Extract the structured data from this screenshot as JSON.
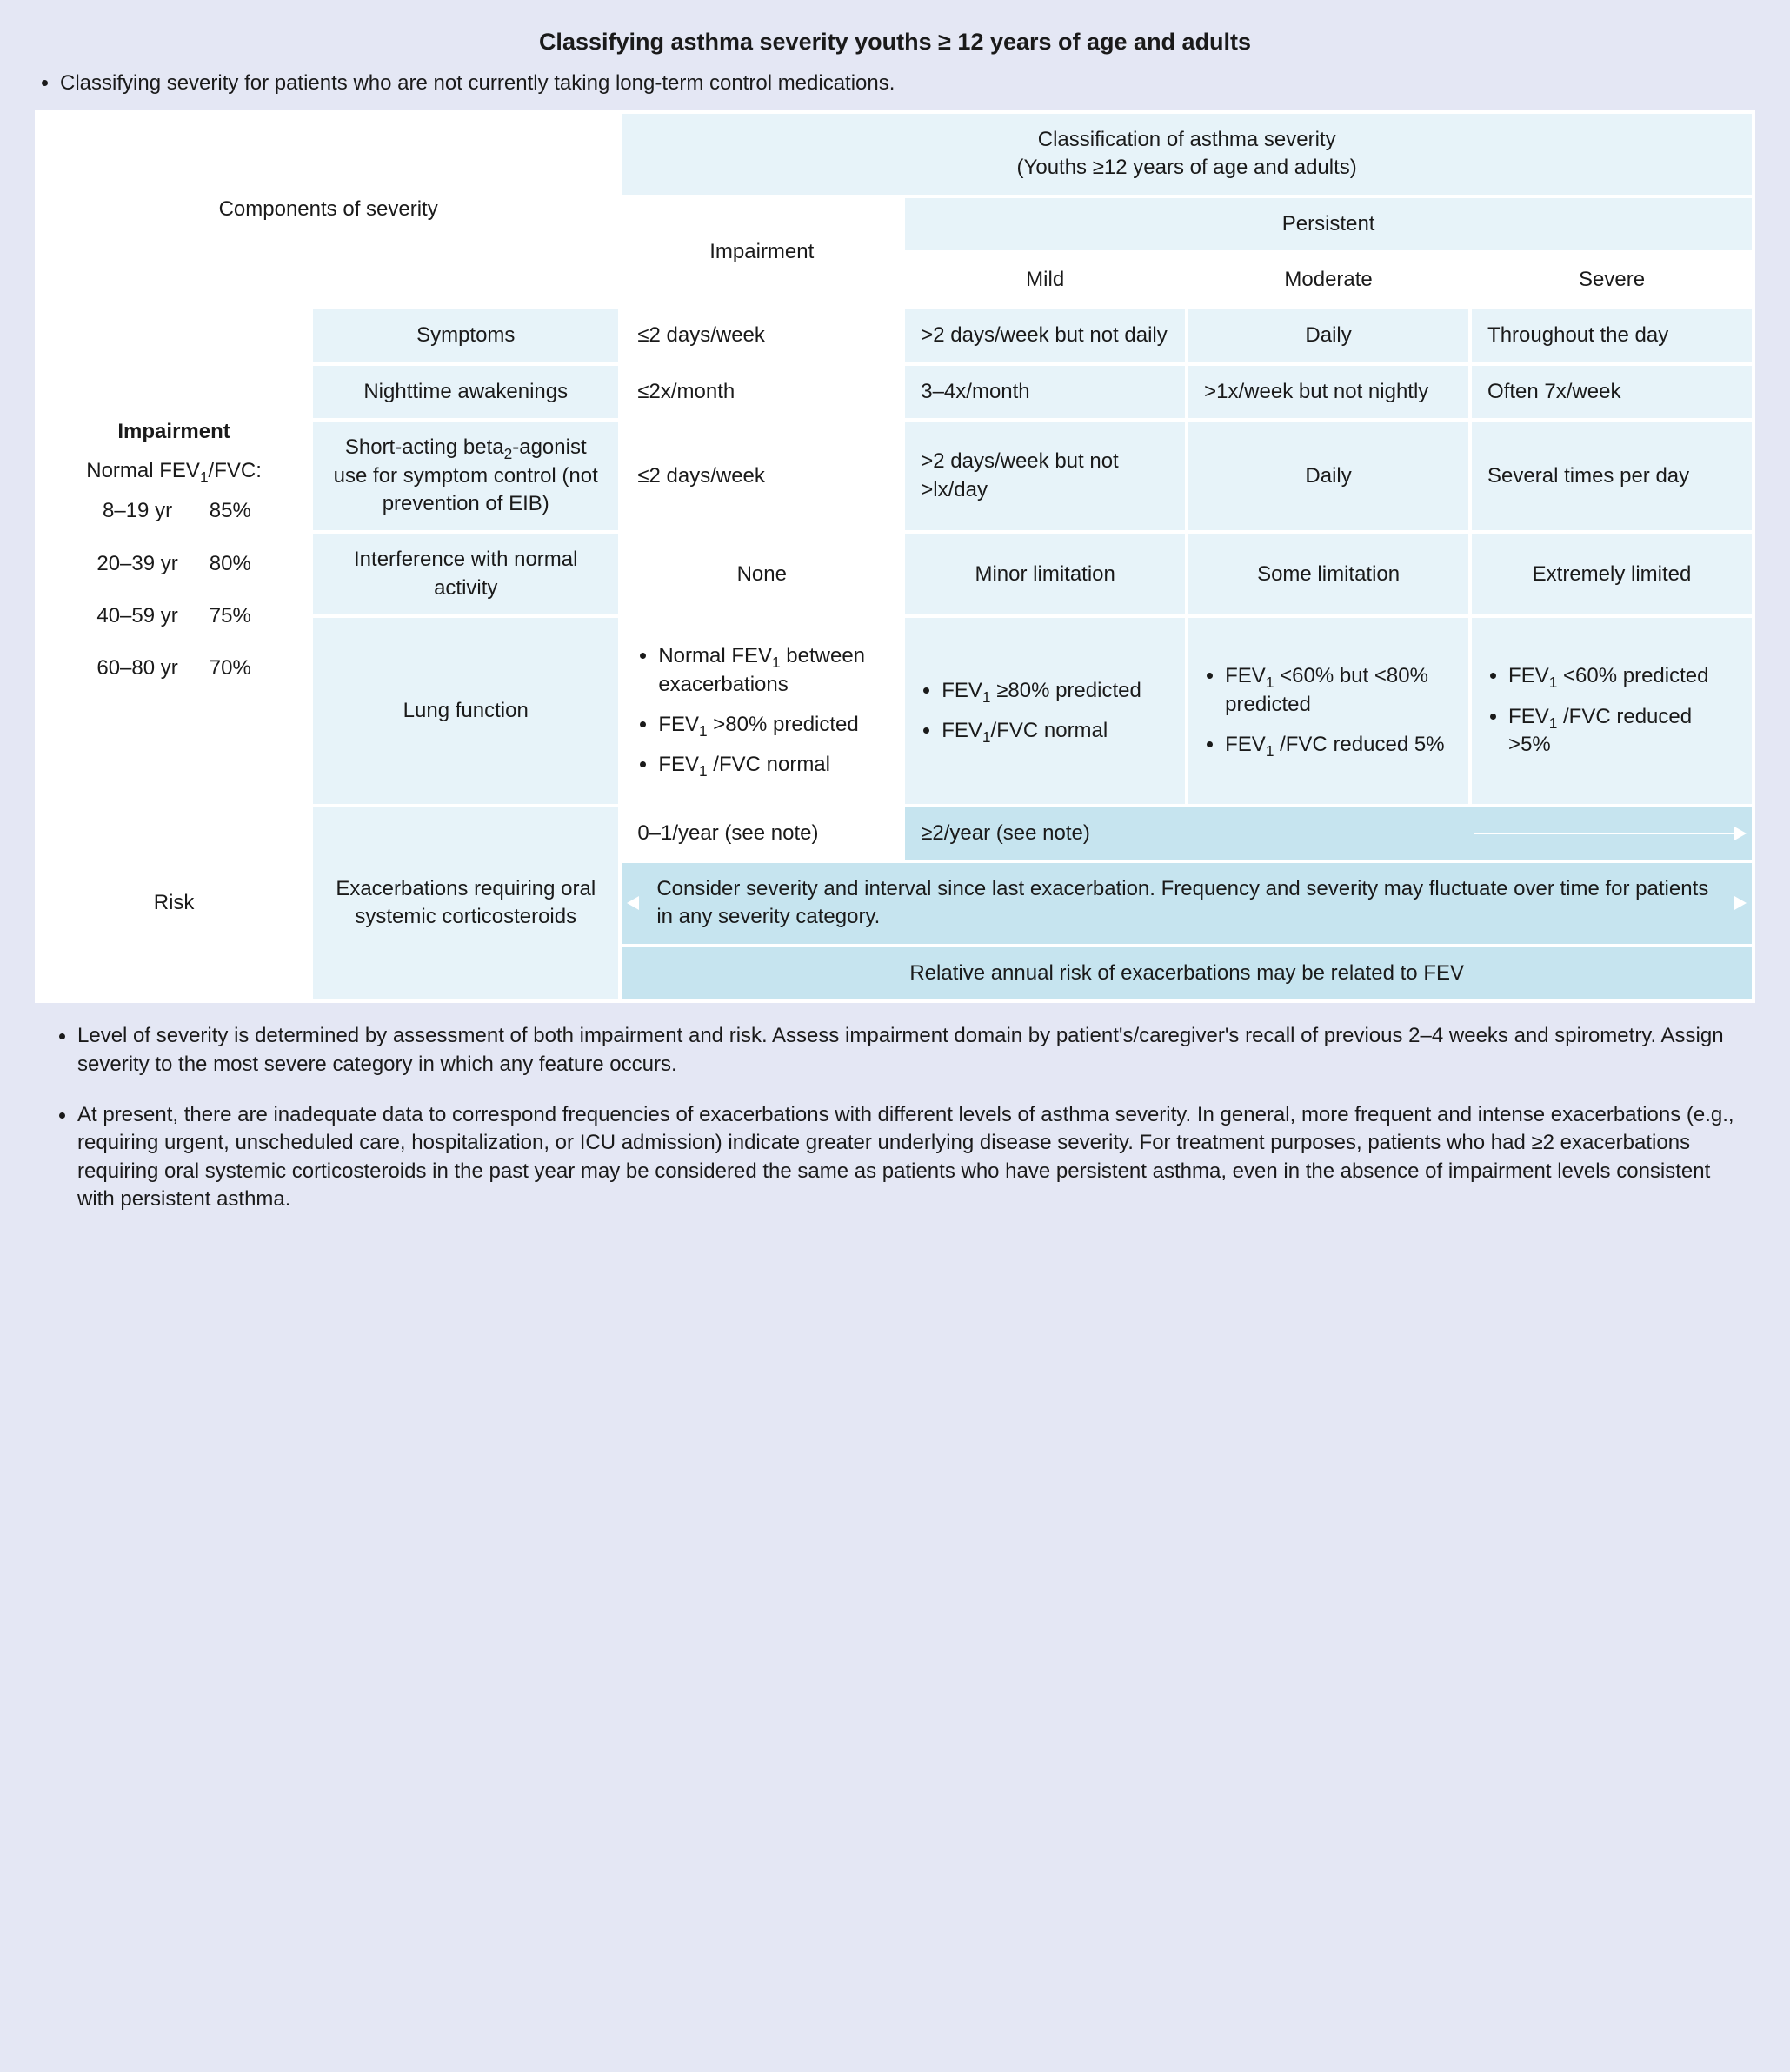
{
  "title": "Classifying asthma severity youths ≥ 12 years of age and adults",
  "subtitle": "Classifying severity for patients who are not currently taking long-term control medications.",
  "headers": {
    "components": "Components of severity",
    "classification_line1": "Classification of asthma severity",
    "classification_line2": "(Youths ≥12 years of age and adults)",
    "impairment_col": "Impairment",
    "persistent": "Persistent",
    "mild": "Mild",
    "moderate": "Moderate",
    "severe": "Severe"
  },
  "left": {
    "impairment": "Impairment",
    "fev_label": "Normal FEV₁/FVC:",
    "fev_rows": [
      {
        "age": "8–19 yr",
        "pct": "85%"
      },
      {
        "age": "20–39 yr",
        "pct": "80%"
      },
      {
        "age": "40–59 yr",
        "pct": "75%"
      },
      {
        "age": "60–80 yr",
        "pct": "70%"
      }
    ],
    "risk": "Risk"
  },
  "rows": {
    "symptoms": {
      "label": "Symptoms",
      "c1": "≤2 days/week",
      "c2": ">2 days/week but not daily",
      "c3": "Daily",
      "c4": "Throughout the day"
    },
    "nighttime": {
      "label": "Nighttime awakenings",
      "c1": "≤2x/month",
      "c2": "3–4x/month",
      "c3": ">1x/week but not nightly",
      "c4": "Often 7x/week"
    },
    "saba": {
      "label": "Short-acting beta₂-agonist use for symptom control (not prevention of EIB)",
      "c1": "≤2 days/week",
      "c2": ">2 days/week but not >lx/day",
      "c3": "Daily",
      "c4": "Several times per day"
    },
    "interference": {
      "label": "Interference with normal activity",
      "c1": "None",
      "c2": "Minor limitation",
      "c3": "Some limitation",
      "c4": "Extremely limited"
    },
    "lung": {
      "label": "Lung function",
      "c1": [
        "Normal FEV₁ between exacerbations",
        "FEV₁ >80% predicted",
        "FEV₁ /FVC normal"
      ],
      "c2": [
        "FEV₁ ≥80% predicted",
        "FEV₁/FVC normal"
      ],
      "c3": [
        "FEV₁ <60% but <80% predicted",
        "FEV₁ /FVC reduced 5%"
      ],
      "c4": [
        "FEV₁ <60% predicted",
        "FEV₁ /FVC reduced >5%"
      ]
    },
    "exac": {
      "label": "Exacerbations requiring oral systemic corticosteroids",
      "c1": "0–1/year (see note)",
      "c2": "≥2/year (see note)",
      "note1": "Consider severity and interval since last exacerbation. Frequency and severity may fluctuate over time for patients in any severity category.",
      "note2": "Relative annual risk of exacerbations may be related to FEV"
    }
  },
  "notes": {
    "n1": "Level of severity is determined by assessment of both impairment and risk. Assess impairment domain by patient's/caregiver's recall of previous 2–4 weeks and spirometry. Assign severity to the most severe category in which any feature occurs.",
    "n2": "At present, there are inadequate data to correspond frequencies of exacerbations with different levels of asthma severity. In general, more frequent and intense exacerbations (e.g., requiring urgent, unscheduled care, hospitalization, or ICU admission) indicate greater underlying disease severity. For treatment purposes, patients who had ≥2 exacerbations requiring oral systemic corticosteroids in the past year may be considered the same as patients who have persistent asthma, even in the absence of impairment levels consistent with persistent asthma."
  },
  "style": {
    "page_bg": "#e4e7f4",
    "header_blue": "#e7f3f9",
    "risk_blue": "#c6e4ef",
    "text": "#1a1a1a",
    "arrow": "#ffffff"
  }
}
